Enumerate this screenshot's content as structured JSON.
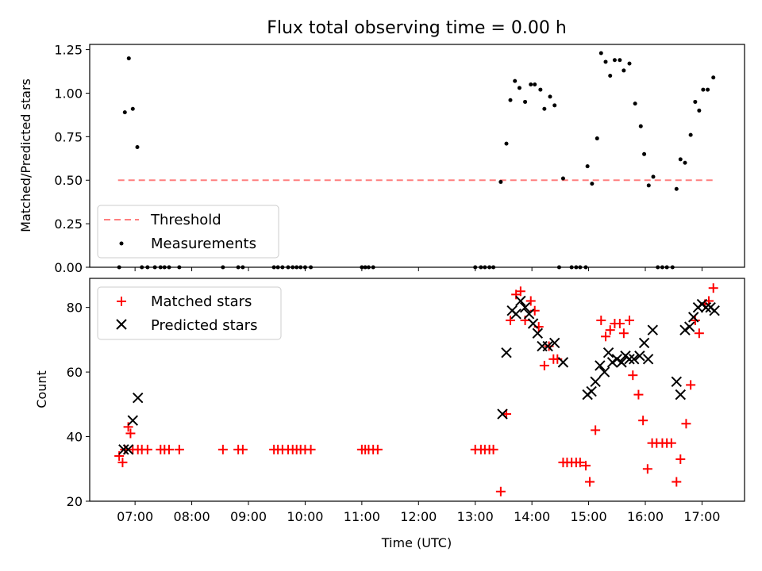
{
  "chart_data": [
    {
      "type": "scatter",
      "title": "Flux total observing time = 0.00 h",
      "xlabel": "",
      "ylabel": "Matched/Predicted stars",
      "ylim": [
        0,
        1.28
      ],
      "xlim": [
        6.2,
        17.75
      ],
      "yticks": [
        "0.00",
        "0.25",
        "0.50",
        "0.75",
        "1.00",
        "1.25"
      ],
      "ytick_values": [
        0,
        0.25,
        0.5,
        0.75,
        1.0,
        1.25
      ],
      "legend_position": "lower-left",
      "threshold": {
        "name": "Threshold",
        "value": 0.5,
        "x_start": 6.7,
        "x_end": 17.23,
        "color": "#ff7f7f"
      },
      "series": [
        {
          "name": "Measurements",
          "color": "#000000",
          "x": [
            6.72,
            6.82,
            6.89,
            6.96,
            7.04,
            7.12,
            7.22,
            7.35,
            7.45,
            7.52,
            7.6,
            7.78,
            8.55,
            8.82,
            8.9,
            9.45,
            9.52,
            9.6,
            9.7,
            9.78,
            9.85,
            9.92,
            10.0,
            10.1,
            11.0,
            11.06,
            11.12,
            11.2,
            13.0,
            13.1,
            13.17,
            13.25,
            13.32,
            13.45,
            13.55,
            13.62,
            13.7,
            13.78,
            13.88,
            13.98,
            14.05,
            14.15,
            14.22,
            14.32,
            14.4,
            14.48,
            14.55,
            14.7,
            14.78,
            14.85,
            14.95,
            14.98,
            15.06,
            15.15,
            15.22,
            15.3,
            15.38,
            15.46,
            15.55,
            15.62,
            15.72,
            15.82,
            15.92,
            15.98,
            16.06,
            16.14,
            16.22,
            16.3,
            16.38,
            16.48,
            16.55,
            16.62,
            16.7,
            16.8,
            16.88,
            16.95,
            17.02,
            17.1,
            17.2
          ],
          "y": [
            0.0,
            0.89,
            1.2,
            0.91,
            0.69,
            0.0,
            0.0,
            0.0,
            0.0,
            0.0,
            0.0,
            0.0,
            0.0,
            0.0,
            0.0,
            0.0,
            0.0,
            0.0,
            0.0,
            0.0,
            0.0,
            0.0,
            0.0,
            0.0,
            0.0,
            0.0,
            0.0,
            0.0,
            0.0,
            0.0,
            0.0,
            0.0,
            0.0,
            0.49,
            0.71,
            0.96,
            1.07,
            1.03,
            0.95,
            1.05,
            1.05,
            1.02,
            0.91,
            0.98,
            0.93,
            0.0,
            0.51,
            0.0,
            0.0,
            0.0,
            0.0,
            0.58,
            0.48,
            0.74,
            1.23,
            1.18,
            1.1,
            1.19,
            1.19,
            1.13,
            1.17,
            0.94,
            0.81,
            0.65,
            0.47,
            0.52,
            0.0,
            0.0,
            0.0,
            0.0,
            0.45,
            0.62,
            0.6,
            0.76,
            0.95,
            0.9,
            1.02,
            1.02,
            1.09
          ]
        }
      ]
    },
    {
      "type": "scatter",
      "title": "",
      "xlabel": "Time (UTC)",
      "ylabel": "Count",
      "ylim": [
        20,
        89
      ],
      "xlim": [
        6.2,
        17.75
      ],
      "yticks": [
        "20",
        "40",
        "60",
        "80"
      ],
      "ytick_values": [
        20,
        40,
        60,
        80
      ],
      "xticks": [
        "07:00",
        "08:00",
        "09:00",
        "10:00",
        "11:00",
        "12:00",
        "13:00",
        "14:00",
        "15:00",
        "16:00",
        "17:00"
      ],
      "xtick_values": [
        7,
        8,
        9,
        10,
        11,
        12,
        13,
        14,
        15,
        16,
        17
      ],
      "legend_position": "upper-left",
      "series": [
        {
          "name": "Matched stars",
          "marker": "plus",
          "color": "#ff0000",
          "x": [
            6.72,
            6.78,
            6.82,
            6.88,
            6.92,
            6.96,
            7.05,
            7.12,
            7.22,
            7.45,
            7.52,
            7.6,
            7.78,
            8.55,
            8.82,
            8.9,
            9.45,
            9.52,
            9.6,
            9.7,
            9.78,
            9.85,
            9.92,
            10.0,
            10.1,
            11.0,
            11.06,
            11.12,
            11.2,
            11.28,
            13.0,
            13.1,
            13.17,
            13.25,
            13.32,
            13.45,
            13.55,
            13.62,
            13.72,
            13.8,
            13.88,
            13.98,
            14.05,
            14.12,
            14.22,
            14.3,
            14.38,
            14.45,
            14.55,
            14.62,
            14.7,
            14.78,
            14.85,
            14.95,
            15.02,
            15.12,
            15.22,
            15.3,
            15.38,
            15.46,
            15.55,
            15.62,
            15.72,
            15.78,
            15.88,
            15.96,
            16.04,
            16.12,
            16.2,
            16.3,
            16.38,
            16.46,
            16.55,
            16.62,
            16.72,
            16.8,
            16.88,
            16.95,
            17.05,
            17.12,
            17.2
          ],
          "y": [
            34,
            32,
            36,
            43,
            41,
            36,
            36,
            36,
            36,
            36,
            36,
            36,
            36,
            36,
            36,
            36,
            36,
            36,
            36,
            36,
            36,
            36,
            36,
            36,
            36,
            36,
            36,
            36,
            36,
            36,
            36,
            36,
            36,
            36,
            36,
            23,
            47,
            76,
            84,
            85,
            76,
            82,
            79,
            74,
            62,
            68,
            64,
            64,
            32,
            32,
            32,
            32,
            32,
            31,
            26,
            42,
            76,
            71,
            73,
            75,
            75,
            72,
            76,
            59,
            53,
            45,
            30,
            38,
            38,
            38,
            38,
            38,
            26,
            33,
            44,
            56,
            76,
            72,
            81,
            82,
            86
          ]
        },
        {
          "name": "Predicted stars",
          "marker": "x",
          "color": "#000000",
          "x": [
            6.8,
            6.88,
            6.96,
            7.05,
            13.48,
            13.55,
            13.65,
            13.72,
            13.8,
            13.88,
            13.95,
            14.02,
            14.1,
            14.18,
            14.28,
            14.4,
            14.55,
            14.98,
            15.05,
            15.12,
            15.2,
            15.28,
            15.35,
            15.42,
            15.5,
            15.58,
            15.65,
            15.72,
            15.8,
            15.9,
            15.98,
            16.05,
            16.13,
            16.55,
            16.62,
            16.7,
            16.78,
            16.85,
            16.93,
            17.0,
            17.07,
            17.15,
            17.22
          ],
          "y": [
            36,
            36,
            45,
            52,
            47,
            66,
            79,
            78,
            82,
            80,
            78,
            75,
            72,
            68,
            68,
            69,
            63,
            53,
            54,
            57,
            62,
            60,
            66,
            63,
            64,
            63,
            65,
            64,
            64,
            65,
            69,
            64,
            73,
            57,
            53,
            73,
            74,
            77,
            80,
            81,
            80,
            80,
            79
          ]
        }
      ]
    }
  ]
}
